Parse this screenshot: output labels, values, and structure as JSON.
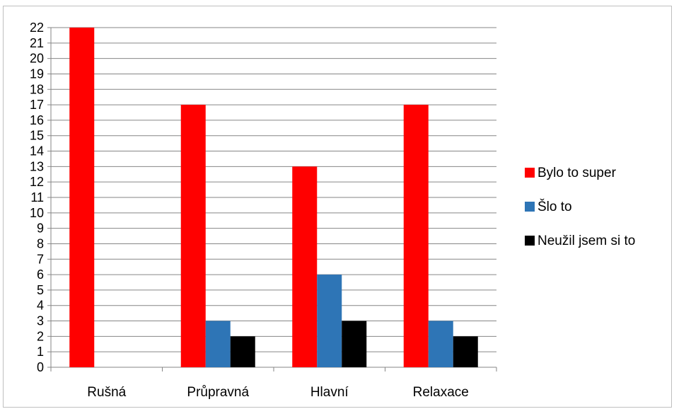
{
  "chart_data": {
    "type": "bar",
    "categories": [
      "Rušná",
      "Průpravná",
      "Hlavní",
      "Relaxace"
    ],
    "series": [
      {
        "name": "Bylo to super",
        "values": [
          22,
          17,
          13,
          17
        ],
        "color": "#ff0000"
      },
      {
        "name": "Šlo to",
        "values": [
          0,
          3,
          6,
          3
        ],
        "color": "#2e75b6"
      },
      {
        "name": "Neužil jsem si to",
        "values": [
          0,
          2,
          3,
          2
        ],
        "color": "#000000"
      }
    ],
    "ylim": [
      0,
      22
    ],
    "ytick_step": 1,
    "grid": true,
    "legend_position": "right",
    "title": "",
    "xlabel": "",
    "ylabel": ""
  }
}
